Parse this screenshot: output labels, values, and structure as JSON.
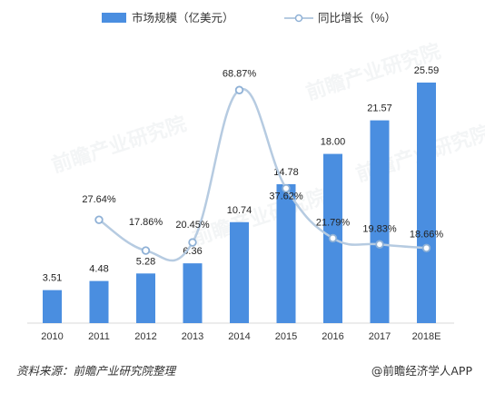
{
  "chart_data": {
    "type": "bar",
    "categories": [
      "2010",
      "2011",
      "2012",
      "2013",
      "2014",
      "2015",
      "2016",
      "2017",
      "2018E"
    ],
    "series": [
      {
        "name": "市场规模（亿美元）",
        "type": "bar",
        "values": [
          3.51,
          4.48,
          5.28,
          6.36,
          10.74,
          14.78,
          18.0,
          21.57,
          25.59
        ],
        "labels": [
          "3.51",
          "4.48",
          "5.28",
          "6.36",
          "10.74",
          "14.78",
          "18.00",
          "21.57",
          "25.59"
        ]
      },
      {
        "name": "同比增长（%）",
        "type": "line",
        "values": [
          null,
          27.64,
          17.86,
          20.45,
          68.87,
          37.62,
          21.79,
          19.83,
          18.66
        ],
        "labels": [
          null,
          "27.64%",
          "17.86%",
          "20.45%",
          "68.87%",
          "37.62%",
          "21.79%",
          "19.83%",
          "18.66%"
        ]
      }
    ],
    "bar_color": "#4a8ee0",
    "line_color": "#b6cbe1",
    "ylim_bar": [
      0,
      28
    ],
    "ylim_line": [
      0,
      75
    ],
    "grid": false,
    "legend_position": "top"
  },
  "watermark": "前瞻产业研究院",
  "footer": {
    "source": "资料来源：前瞻产业研究院整理",
    "brand": "@前瞻经济学人APP"
  }
}
